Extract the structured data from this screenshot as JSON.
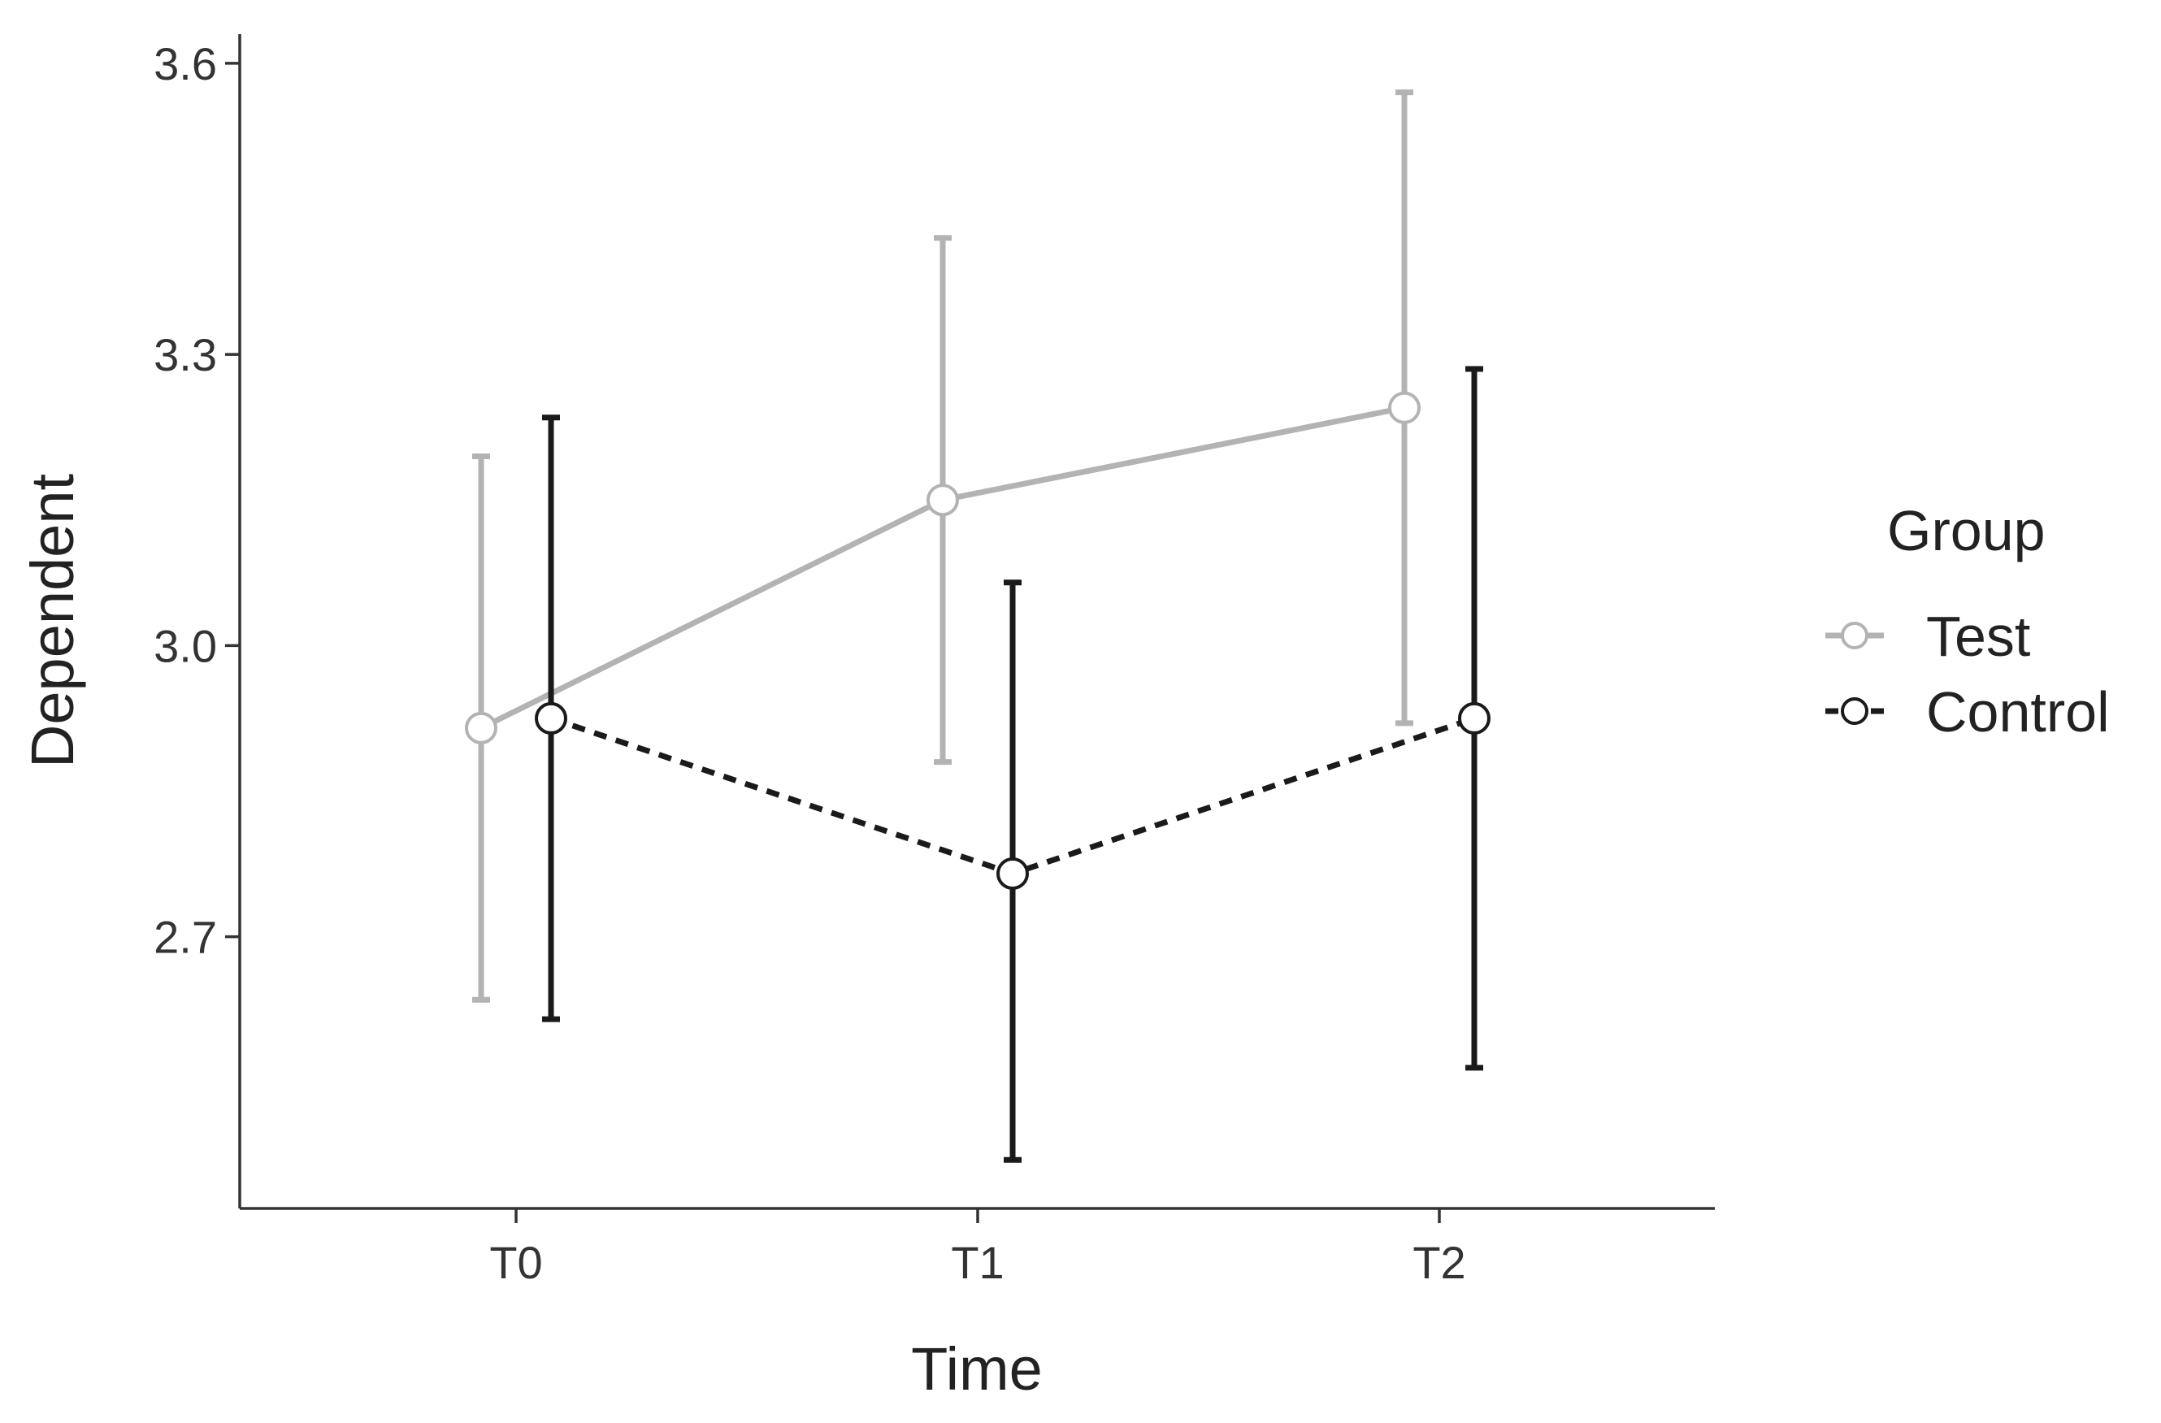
{
  "chart_data": {
    "type": "line",
    "title": "",
    "xlabel": "Time",
    "ylabel": "Dependent",
    "categories": [
      "T0",
      "T1",
      "T2"
    ],
    "ylim": [
      2.42,
      3.63
    ],
    "yticks": [
      2.7,
      3.0,
      3.3,
      3.6
    ],
    "ytick_labels": [
      "2.7",
      "3.0",
      "3.3",
      "3.6"
    ],
    "grid": false,
    "legend": {
      "title": "Group",
      "placement": "right"
    },
    "series": [
      {
        "name": "Test",
        "color": "#b3b3b3",
        "line_style": "solid",
        "values": [
          2.915,
          3.15,
          3.245
        ],
        "error_low": [
          2.635,
          2.88,
          2.92
        ],
        "error_high": [
          3.195,
          3.42,
          3.57
        ]
      },
      {
        "name": "Control",
        "color": "#1a1a1a",
        "line_style": "dashed",
        "values": [
          2.925,
          2.765,
          2.925
        ],
        "error_low": [
          2.615,
          2.47,
          2.565
        ],
        "error_high": [
          3.235,
          3.065,
          3.285
        ]
      }
    ]
  }
}
